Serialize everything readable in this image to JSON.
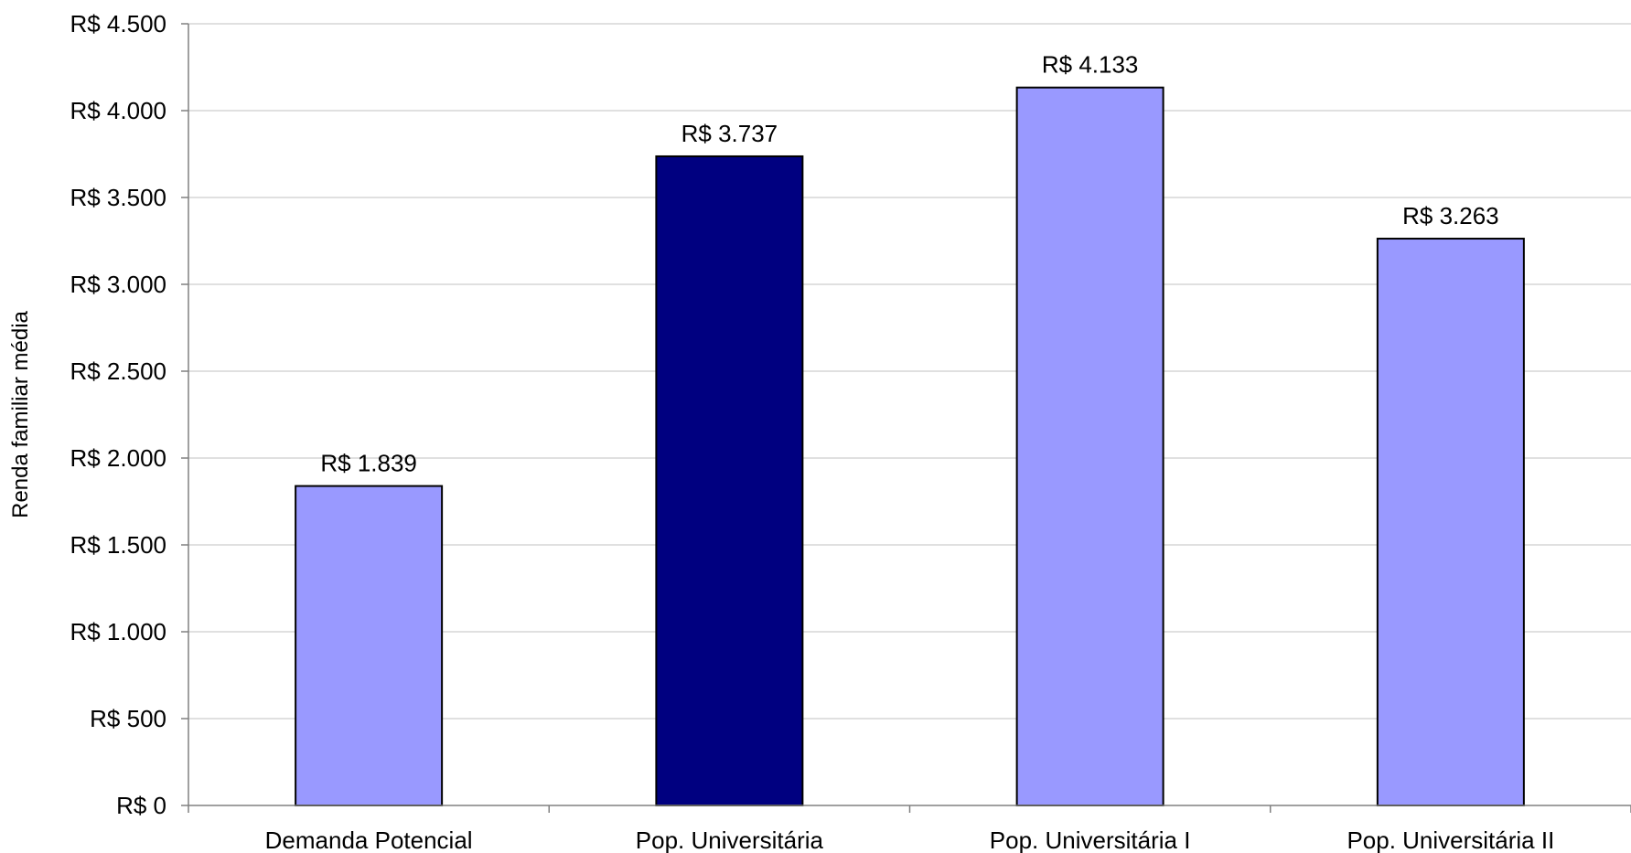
{
  "chart_data": {
    "type": "bar",
    "categories": [
      "Demanda Potencial",
      "Pop. Universitária",
      "Pop. Universitária I",
      "Pop. Universitária II"
    ],
    "values": [
      1839,
      3737,
      4133,
      3263
    ],
    "value_labels": [
      "R$ 1.839",
      "R$ 3.737",
      "R$ 4.133",
      "R$ 3.263"
    ],
    "bar_colors": [
      "#9999ff",
      "#000080",
      "#9999ff",
      "#9999ff"
    ],
    "ylabel": "Renda familiar média",
    "xlabel": "",
    "title": "",
    "ylim": [
      0,
      4500
    ],
    "yticks": [
      0,
      500,
      1000,
      1500,
      2000,
      2500,
      3000,
      3500,
      4000,
      4500
    ],
    "ytick_labels": [
      "R$ 0",
      "R$ 500",
      "R$ 1.000",
      "R$ 1.500",
      "R$ 2.000",
      "R$ 2.500",
      "R$ 3.000",
      "R$ 3.500",
      "R$ 4.000",
      "R$ 4.500"
    ],
    "grid": true,
    "colors": {
      "grid": "#c0c0c0",
      "axis": "#808080",
      "bar_outline": "#000000"
    }
  }
}
